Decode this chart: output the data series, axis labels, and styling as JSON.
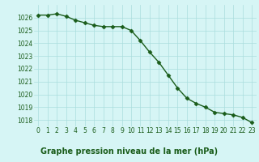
{
  "x": [
    0,
    1,
    2,
    3,
    4,
    5,
    6,
    7,
    8,
    9,
    10,
    11,
    12,
    13,
    14,
    15,
    16,
    17,
    18,
    19,
    20,
    21,
    22,
    23
  ],
  "y": [
    1026.2,
    1026.2,
    1026.3,
    1026.1,
    1025.8,
    1025.6,
    1025.4,
    1025.3,
    1025.3,
    1025.3,
    1025.0,
    1024.2,
    1023.3,
    1022.5,
    1021.5,
    1020.5,
    1019.7,
    1019.3,
    1019.0,
    1018.6,
    1018.5,
    1018.4,
    1018.2,
    1017.8
  ],
  "line_color": "#1a5c1a",
  "marker": "D",
  "markersize": 2.5,
  "linewidth": 1.0,
  "bg_color": "#d6f5f5",
  "grid_color": "#aadddd",
  "title": "Graphe pression niveau de la mer (hPa)",
  "ylim": [
    1017.5,
    1027.0
  ],
  "xlim": [
    -0.5,
    23.5
  ],
  "yticks": [
    1018,
    1019,
    1020,
    1021,
    1022,
    1023,
    1024,
    1025,
    1026
  ],
  "xticks": [
    0,
    1,
    2,
    3,
    4,
    5,
    6,
    7,
    8,
    9,
    10,
    11,
    12,
    13,
    14,
    15,
    16,
    17,
    18,
    19,
    20,
    21,
    22,
    23
  ],
  "title_fontsize": 7.0,
  "tick_fontsize": 5.5,
  "title_color": "#1a5c1a",
  "tick_color": "#1a5c1a",
  "title_bold": true
}
